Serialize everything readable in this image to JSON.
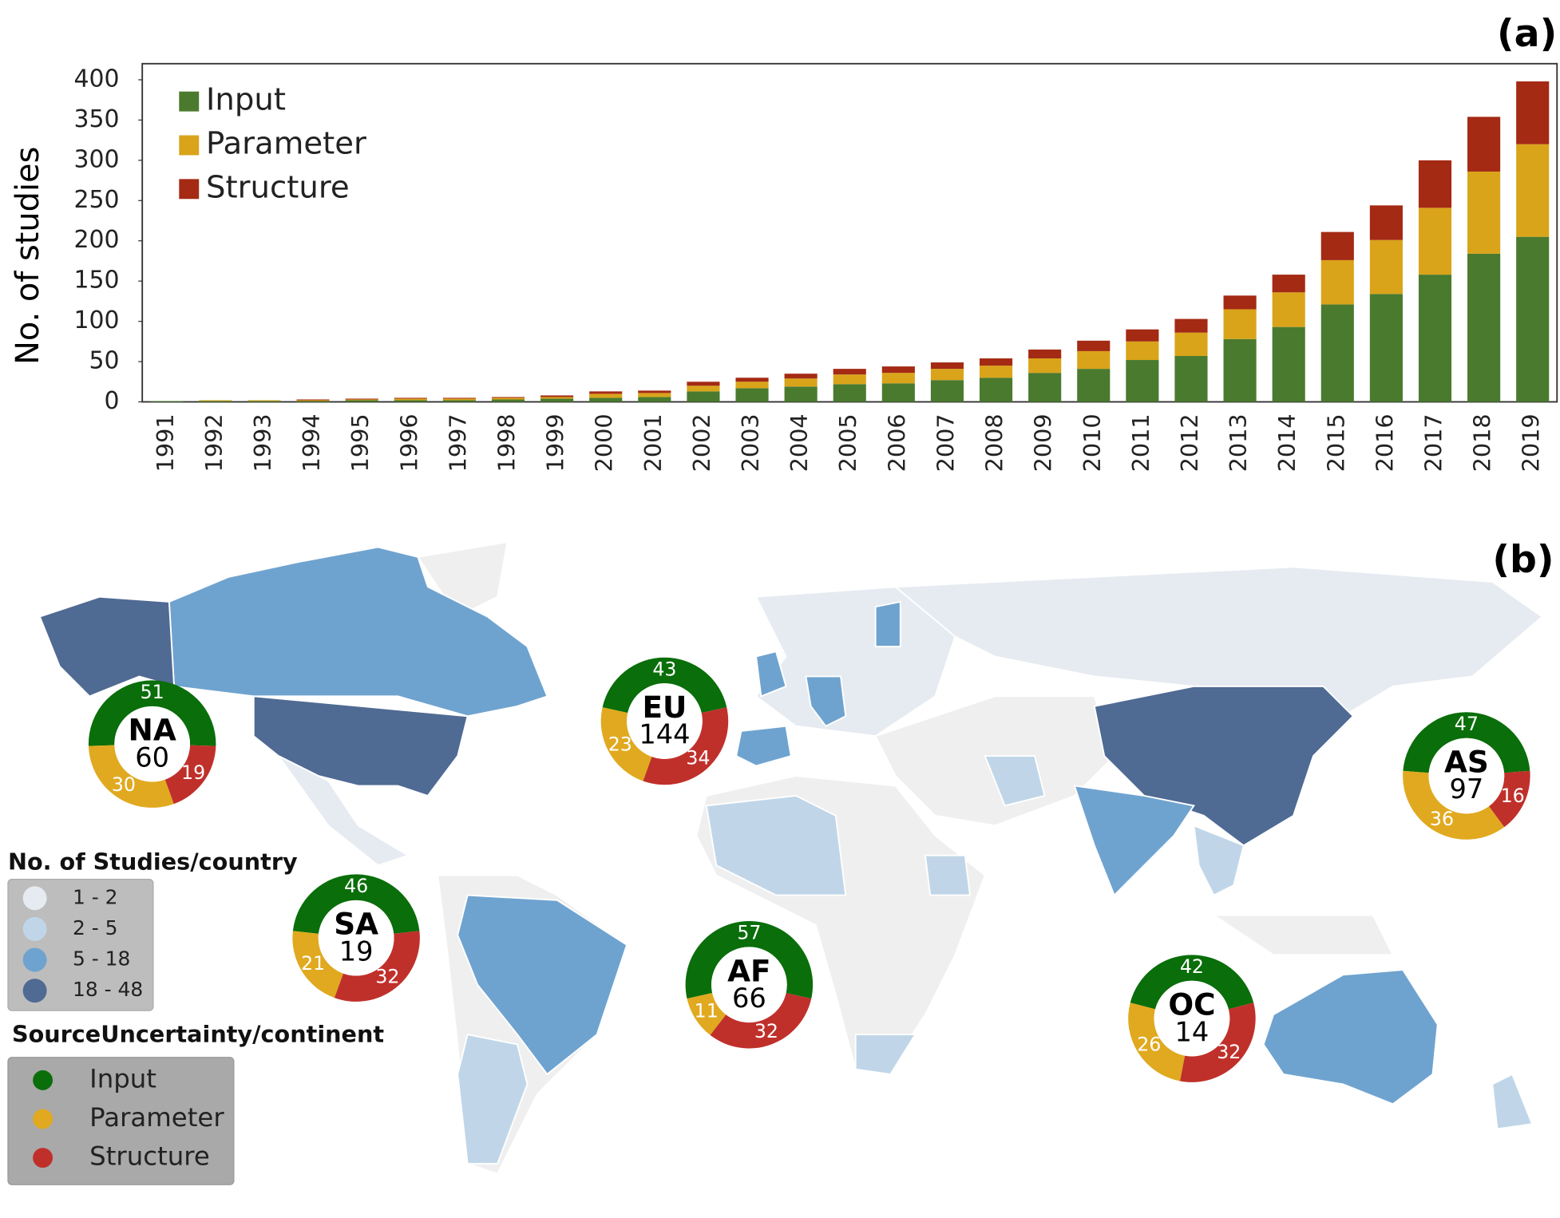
{
  "chart_data": [
    {
      "type": "stacked-bar",
      "panel_label": "(a)",
      "y_label": "No. of studies",
      "categories": [
        "1991",
        "1992",
        "1993",
        "1994",
        "1995",
        "1996",
        "1997",
        "1998",
        "1999",
        "2000",
        "2001",
        "2002",
        "2003",
        "2004",
        "2005",
        "2006",
        "2007",
        "2008",
        "2009",
        "2010",
        "2011",
        "2012",
        "2013",
        "2014",
        "2015",
        "2016",
        "2017",
        "2018",
        "2019"
      ],
      "series": [
        {
          "name": "Input",
          "color": "#4a7a2e",
          "values": [
            1,
            1,
            1,
            1,
            2,
            2,
            2,
            3,
            4,
            5,
            6,
            13,
            17,
            19,
            22,
            23,
            27,
            30,
            36,
            41,
            52,
            57,
            78,
            93,
            121,
            134,
            158,
            184,
            205
          ]
        },
        {
          "name": "Parameter",
          "color": "#d9a41a",
          "values": [
            0,
            1,
            1,
            1,
            1,
            2,
            2,
            2,
            2,
            5,
            5,
            7,
            8,
            10,
            12,
            13,
            14,
            15,
            18,
            22,
            23,
            29,
            37,
            43,
            55,
            67,
            83,
            102,
            115
          ]
        },
        {
          "name": "Structure",
          "color": "#a42a14",
          "values": [
            0,
            0,
            0,
            1,
            1,
            1,
            1,
            1,
            2,
            3,
            3,
            5,
            5,
            6,
            7,
            8,
            8,
            9,
            11,
            13,
            15,
            17,
            17,
            22,
            35,
            43,
            59,
            68,
            78
          ]
        }
      ],
      "ylim": [
        0,
        420
      ],
      "yticks": [
        0,
        50,
        100,
        150,
        200,
        250,
        300,
        350,
        400
      ],
      "legend": "upper-left"
    },
    {
      "type": "donut-map",
      "panel_label": "(b)",
      "categories": [
        "NA",
        "EU",
        "AS",
        "SA",
        "AF",
        "OC"
      ],
      "totals": [
        60,
        144,
        97,
        19,
        66,
        14
      ],
      "series": [
        {
          "name": "Input",
          "color": "#0a6e0a",
          "values": [
            51,
            43,
            47,
            46,
            57,
            42
          ]
        },
        {
          "name": "Parameter",
          "color": "#e0a91f",
          "values": [
            30,
            23,
            36,
            21,
            11,
            26
          ]
        },
        {
          "name": "Structure",
          "color": "#c0302b",
          "values": [
            19,
            34,
            16,
            32,
            32,
            32
          ]
        }
      ],
      "country_legend_title": "No. of Studies/country",
      "country_classes": [
        {
          "label": "1 - 2",
          "color": "#e6ebf1"
        },
        {
          "label": "2 - 5",
          "color": "#c0d6e8"
        },
        {
          "label": "5 - 18",
          "color": "#6fa3cf"
        },
        {
          "label": "18 - 48",
          "color": "#4f6a93"
        }
      ],
      "source_legend_title": "SourceUncertainty/continent"
    }
  ]
}
